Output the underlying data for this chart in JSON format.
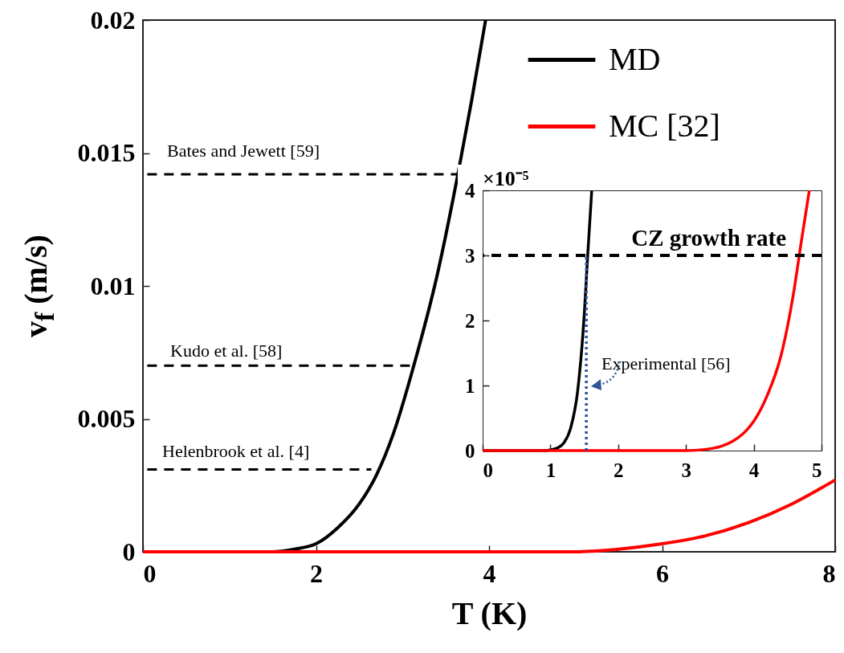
{
  "chart_data": [
    {
      "type": "line",
      "xlabel": "T (K)",
      "ylabel": "v$_{f}$  (m/s)",
      "xlim": [
        0,
        8
      ],
      "ylim": [
        0,
        0.02
      ],
      "xticks": [
        0,
        2,
        4,
        6,
        8
      ],
      "yticks": [
        0,
        0.005,
        0.01,
        0.015,
        0.02
      ],
      "legend": "top right",
      "grid": false,
      "series": [
        {
          "name": "MD",
          "color": "#000000",
          "x": [
            0,
            1,
            1.5,
            1.75,
            2,
            2.25,
            2.5,
            2.7,
            2.9,
            3.13,
            3.4,
            3.64,
            3.8,
            3.96
          ],
          "values": [
            0,
            0,
            0,
            0.0001,
            0.0003,
            0.0009,
            0.0018,
            0.0029,
            0.0045,
            0.007,
            0.0104,
            0.0142,
            0.017,
            0.02
          ]
        },
        {
          "name": "MC [32]",
          "color": "#ff0000",
          "x": [
            0,
            4,
            5,
            5.5,
            6,
            6.5,
            7,
            7.5,
            8
          ],
          "values": [
            0,
            0,
            0,
            0.0001,
            0.0003,
            0.0006,
            0.0011,
            0.0018,
            0.0027
          ]
        },
        {
          "color": "#000000",
          "line_style": "dashed",
          "x": [
            0.05,
            3.64
          ],
          "values": [
            0.0142,
            0.0142
          ]
        },
        {
          "color": "#000000",
          "line_style": "dashed",
          "x": [
            0.05,
            3.13
          ],
          "values": [
            0.007,
            0.007
          ]
        },
        {
          "color": "#000000",
          "line_style": "dashed",
          "x": [
            0.05,
            2.64
          ],
          "values": [
            0.0031,
            0.0031
          ]
        }
      ],
      "annotations": [
        "Bates and Jewett [59]",
        "Kudo et al. [58]",
        "Helenbrook et al. [4]"
      ]
    },
    {
      "type": "line",
      "xlim": [
        0,
        5
      ],
      "ylim": [
        0,
        4
      ],
      "xticks": [
        0,
        1,
        2,
        3,
        4,
        5
      ],
      "yticks": [
        0,
        1,
        2,
        3,
        4
      ],
      "grid": false,
      "series": [
        {
          "color": "#000000",
          "x": [
            0,
            0.9,
            1.0,
            1.1,
            1.2,
            1.3,
            1.4,
            1.5,
            1.55,
            1.61
          ],
          "values": [
            0,
            0,
            0.01,
            0.04,
            0.12,
            0.35,
            0.9,
            2.1,
            3,
            4
          ]
        },
        {
          "color": "#ff0000",
          "x": [
            0,
            3,
            3.3,
            3.5,
            3.7,
            3.9,
            4.0,
            4.2,
            4.4,
            4.6,
            4.7,
            4.82
          ],
          "values": [
            0,
            0,
            0.02,
            0.06,
            0.15,
            0.32,
            0.45,
            0.85,
            1.45,
            2.5,
            3.2,
            4
          ]
        },
        {
          "color": "#2f5597",
          "line_style": "dotted",
          "x": [
            1.53,
            1.53
          ],
          "values": [
            0,
            3
          ]
        }
      ],
      "ref_lines": [
        {
          "axis": "y",
          "value": 3,
          "label": "CZ growth rate",
          "color": "#000000",
          "line_style": "dashed"
        }
      ],
      "annotations": [
        "×10⁻⁵",
        "Experimental [56]"
      ]
    }
  ]
}
